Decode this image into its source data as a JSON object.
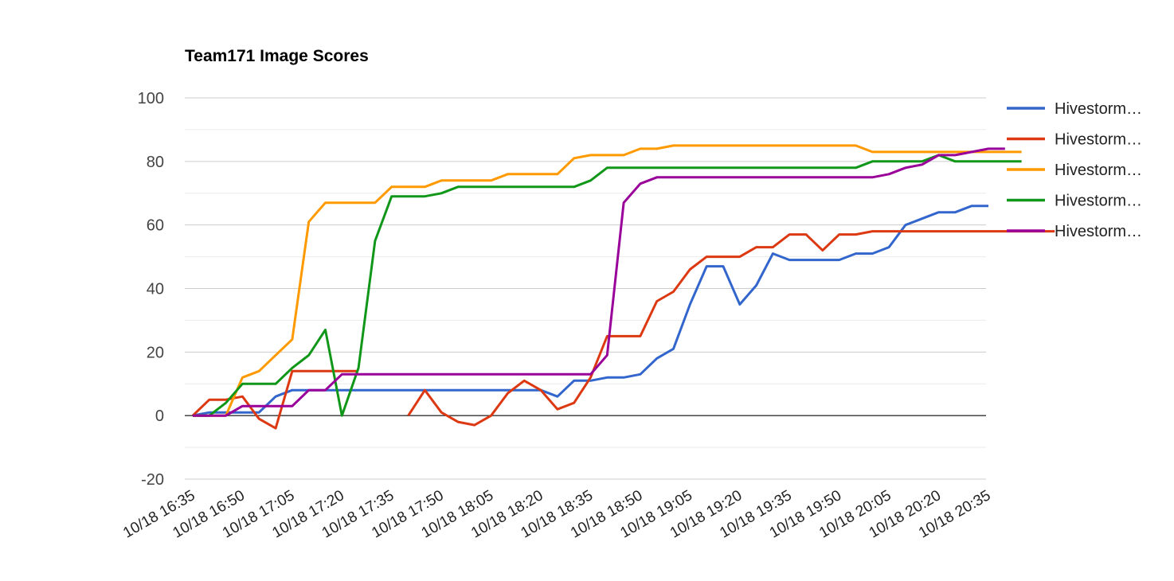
{
  "chart_data": {
    "type": "line",
    "title": "Team171 Image Scores",
    "xlabel": "",
    "ylabel": "",
    "ylim": [
      -20,
      100
    ],
    "y_ticks": [
      -20,
      0,
      20,
      40,
      60,
      80,
      100
    ],
    "x_tick_labels": [
      "10/18 16:35",
      "10/18 16:50",
      "10/18 17:05",
      "10/18 17:20",
      "10/18 17:35",
      "10/18 17:50",
      "10/18 18:05",
      "10/18 18:20",
      "10/18 18:35",
      "10/18 18:50",
      "10/18 19:05",
      "10/18 19:20",
      "10/18 19:35",
      "10/18 19:50",
      "10/18 20:05",
      "10/18 20:20",
      "10/18 20:35"
    ],
    "x_start": "10/18 16:35",
    "x_step_minutes": 5,
    "grid": true,
    "legend_position": "right",
    "series": [
      {
        "name": "Hivestorm…",
        "color": "#3366cc",
        "values": [
          0,
          1,
          1,
          1,
          1,
          6,
          8,
          8,
          8,
          8,
          8,
          8,
          8,
          8,
          8,
          8,
          8,
          8,
          8,
          8,
          8,
          8,
          6,
          11,
          11,
          12,
          12,
          13,
          18,
          21,
          35,
          47,
          47,
          35,
          41,
          51,
          49,
          49,
          49,
          49,
          51,
          51,
          53,
          60,
          62,
          64,
          64,
          66,
          66,
          null,
          null,
          null,
          null
        ]
      },
      {
        "name": "Hivestorm…",
        "color": "#dc3912",
        "values": [
          0,
          5,
          5,
          6,
          -1,
          -4,
          14,
          14,
          14,
          14,
          14,
          null,
          null,
          0,
          8,
          1,
          -2,
          -3,
          0,
          7,
          11,
          8,
          2,
          4,
          12,
          25,
          25,
          25,
          36,
          39,
          46,
          50,
          50,
          50,
          53,
          53,
          57,
          57,
          52,
          57,
          57,
          58,
          58,
          58,
          58,
          58,
          58,
          58,
          58,
          58,
          58,
          58,
          58
        ]
      },
      {
        "name": "Hivestorm…",
        "color": "#ff9900",
        "values": [
          0,
          0,
          0,
          12,
          14,
          19,
          24,
          61,
          67,
          67,
          67,
          67,
          72,
          72,
          72,
          74,
          74,
          74,
          74,
          76,
          76,
          76,
          76,
          81,
          82,
          82,
          82,
          84,
          84,
          85,
          85,
          85,
          85,
          85,
          85,
          85,
          85,
          85,
          85,
          85,
          85,
          83,
          83,
          83,
          83,
          83,
          83,
          83,
          83,
          83,
          83,
          null,
          null
        ]
      },
      {
        "name": "Hivestorm…",
        "color": "#109618",
        "values": [
          0,
          0,
          4,
          10,
          10,
          10,
          15,
          19,
          27,
          0,
          15,
          55,
          69,
          69,
          69,
          70,
          72,
          72,
          72,
          72,
          72,
          72,
          72,
          72,
          74,
          78,
          78,
          78,
          78,
          78,
          78,
          78,
          78,
          78,
          78,
          78,
          78,
          78,
          78,
          78,
          78,
          80,
          80,
          80,
          80,
          82,
          80,
          80,
          80,
          80,
          80,
          null,
          null
        ]
      },
      {
        "name": "Hivestorm…",
        "color": "#990099",
        "values": [
          0,
          0,
          0,
          3,
          3,
          3,
          3,
          8,
          8,
          13,
          13,
          13,
          13,
          13,
          13,
          13,
          13,
          13,
          13,
          13,
          13,
          13,
          13,
          13,
          13,
          19,
          67,
          73,
          75,
          75,
          75,
          75,
          75,
          75,
          75,
          75,
          75,
          75,
          75,
          75,
          75,
          75,
          76,
          78,
          79,
          82,
          82,
          83,
          84,
          84,
          null,
          null,
          null
        ]
      }
    ]
  }
}
